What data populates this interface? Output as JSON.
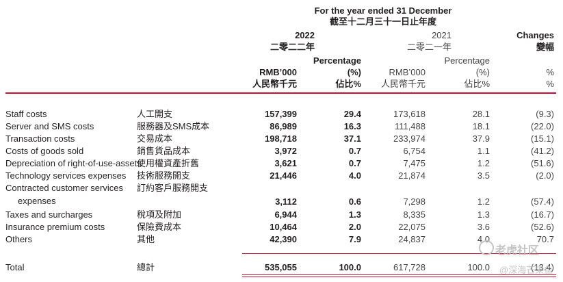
{
  "header": {
    "period_en": "For the year ended 31 December",
    "period_zh": "截至十二月三十一日止年度",
    "year_2022": "2022",
    "year_2022_zh": "二零二二年",
    "year_2021": "2021",
    "year_2021_zh": "二零二一年",
    "changes_en": "Changes",
    "changes_zh": "變幅",
    "pct_label": "Percentage",
    "pct_unit": "(%)",
    "rmb_label": "RMB’000",
    "rmb_label_zh": "人民幣千元",
    "pct_zh": "佔比%",
    "changes_unit": "%"
  },
  "rows": [
    {
      "en": "Staff costs",
      "zh": "人工開支",
      "v2022": "157,399",
      "p2022": "29.4",
      "v2021": "173,618",
      "p2021": "28.1",
      "chg": "(9.3)"
    },
    {
      "en": "Server and SMS costs",
      "zh": "服務器及SMS成本",
      "v2022": "86,989",
      "p2022": "16.3",
      "v2021": "111,488",
      "p2021": "18.1",
      "chg": "(22.0)"
    },
    {
      "en": "Transaction costs",
      "zh": "交易成本",
      "v2022": "198,718",
      "p2022": "37.1",
      "v2021": "233,974",
      "p2021": "37.9",
      "chg": "(15.1)"
    },
    {
      "en": "Costs of goods sold",
      "zh": "銷售貨品成本",
      "v2022": "3,972",
      "p2022": "0.7",
      "v2021": "6,754",
      "p2021": "1.1",
      "chg": "(41.2)"
    },
    {
      "en": "Depreciation of right-of-use-assets",
      "zh": "使用權資產折舊",
      "v2022": "3,621",
      "p2022": "0.7",
      "v2021": "7,475",
      "p2021": "1.2",
      "chg": "(51.6)"
    },
    {
      "en": "Technology services expenses",
      "zh": "技術服務開支",
      "v2022": "21,446",
      "p2022": "4.0",
      "v2021": "21,874",
      "p2021": "3.5",
      "chg": "(2.0)"
    },
    {
      "en": "Contracted customer services",
      "en2": "expenses",
      "zh": "訂約客戶服務開支",
      "v2022": "3,112",
      "p2022": "0.6",
      "v2021": "7,298",
      "p2021": "1.2",
      "chg": "(57.4)"
    },
    {
      "en": "Taxes and surcharges",
      "zh": "稅項及附加",
      "v2022": "6,944",
      "p2022": "1.3",
      "v2021": "8,335",
      "p2021": "1.3",
      "chg": "(16.7)"
    },
    {
      "en": "Insurance premium costs",
      "zh": "保險費成本",
      "v2022": "10,464",
      "p2022": "2.0",
      "v2021": "22,075",
      "p2021": "3.6",
      "chg": "(52.6)"
    },
    {
      "en": "Others",
      "zh": "其他",
      "v2022": "42,390",
      "p2022": "7.9",
      "v2021": "24,837",
      "p2021": "4.0",
      "chg": "70.7"
    }
  ],
  "total": {
    "en": "Total",
    "zh": "總計",
    "v2022": "535,055",
    "p2022": "100.0",
    "v2021": "617,728",
    "p2021": "100.0",
    "chg": "(13.4)"
  },
  "watermarks": [
    "老虎社区",
    "@深海芒果鱼"
  ]
}
